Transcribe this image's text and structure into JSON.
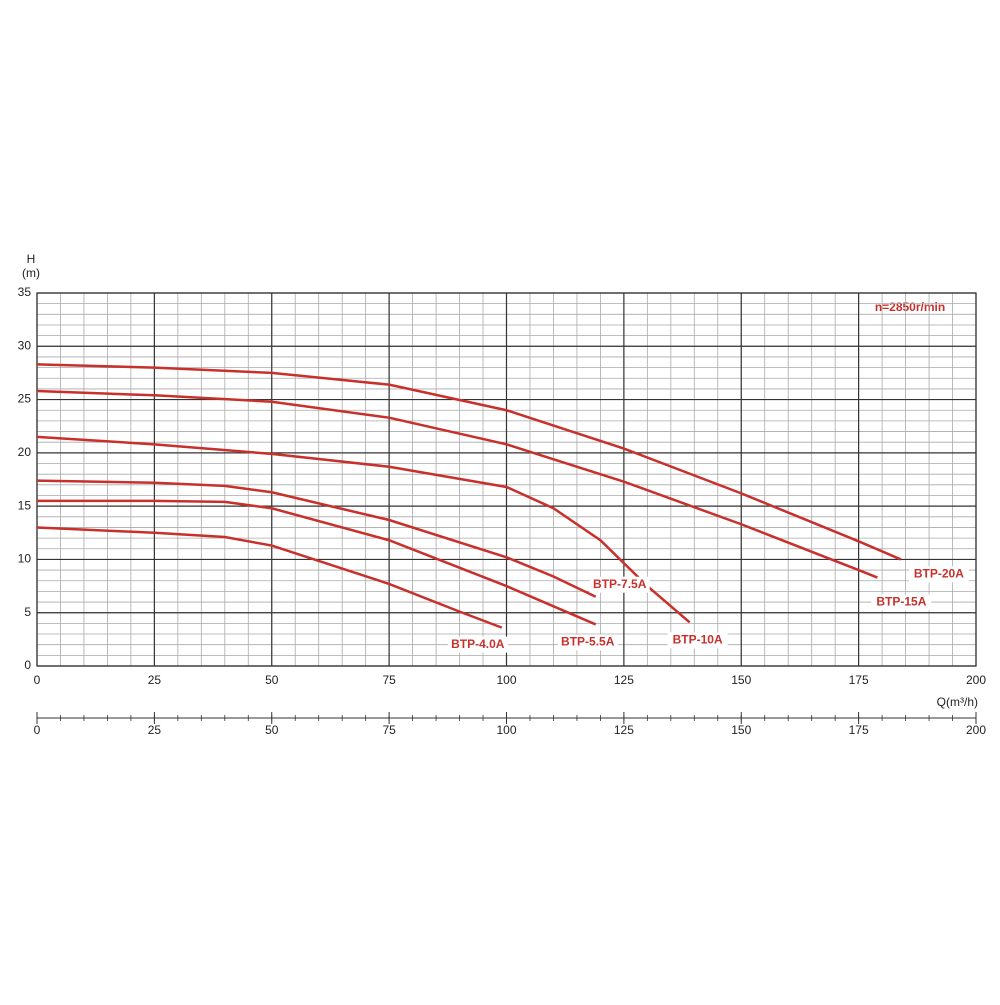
{
  "chart_data": {
    "type": "line",
    "y_label_1": "H",
    "y_label_2": "(m)",
    "x_label": "Q(m³/h)",
    "annotation": "n=2850r/min",
    "xlim": [
      0,
      200
    ],
    "xticks": [
      0,
      25,
      50,
      75,
      100,
      125,
      150,
      175,
      200
    ],
    "ylim": [
      0,
      35
    ],
    "yticks": [
      0,
      5,
      10,
      15,
      20,
      25,
      30,
      35
    ],
    "grid": true,
    "series": [
      {
        "name": "BTP-20A",
        "color": "#c8302b",
        "x": [
          0,
          25,
          50,
          75,
          100,
          125,
          150,
          175,
          184
        ],
        "values": [
          28.3,
          28.0,
          27.5,
          26.4,
          24.0,
          20.4,
          16.2,
          11.7,
          10.0
        ]
      },
      {
        "name": "BTP-15A",
        "color": "#c8302b",
        "x": [
          0,
          25,
          50,
          75,
          100,
          125,
          150,
          175,
          179
        ],
        "values": [
          25.8,
          25.4,
          24.8,
          23.3,
          20.8,
          17.3,
          13.3,
          9.0,
          8.3
        ]
      },
      {
        "name": "BTP-10A",
        "color": "#c8302b",
        "x": [
          0,
          25,
          50,
          75,
          100,
          110,
          120,
          130,
          139
        ],
        "values": [
          21.5,
          20.8,
          19.9,
          18.7,
          16.8,
          14.8,
          11.8,
          7.5,
          4.1
        ]
      },
      {
        "name": "BTP-7.5A",
        "color": "#c8302b",
        "x": [
          0,
          25,
          40,
          50,
          75,
          100,
          110,
          119
        ],
        "values": [
          17.4,
          17.2,
          16.9,
          16.3,
          13.7,
          10.2,
          8.4,
          6.5
        ]
      },
      {
        "name": "BTP-5.5A",
        "color": "#c8302b",
        "x": [
          0,
          25,
          40,
          50,
          75,
          100,
          119
        ],
        "values": [
          15.5,
          15.5,
          15.4,
          14.8,
          11.8,
          7.5,
          3.9
        ]
      },
      {
        "name": "BTP-4.0A",
        "color": "#c8302b",
        "x": [
          0,
          25,
          40,
          50,
          75,
          90,
          99
        ],
        "values": [
          13.0,
          12.5,
          12.1,
          11.3,
          7.7,
          5.1,
          3.6
        ]
      }
    ]
  }
}
